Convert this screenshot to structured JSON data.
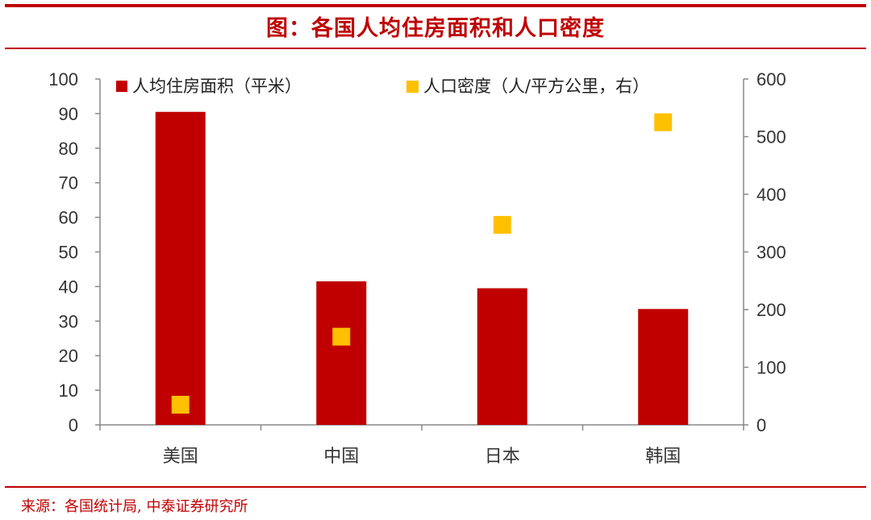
{
  "header": {
    "title": "图：各国人均住房面积和人口密度"
  },
  "footer": {
    "source": "来源：各国统计局, 中泰证券研究所"
  },
  "chart_data": {
    "type": "bar",
    "categories": [
      "美国",
      "中国",
      "日本",
      "韩国"
    ],
    "series": [
      {
        "name": "人均住房面积（平米）",
        "type": "bar",
        "axis": "left",
        "values": [
          90.5,
          41.5,
          39.5,
          33.5
        ],
        "color": "#C00000"
      },
      {
        "name": "人口密度（人/平方公里，右）",
        "type": "scatter",
        "axis": "right",
        "values": [
          35,
          153,
          347,
          525
        ],
        "color": "#FFC000"
      }
    ],
    "y_left": {
      "min": 0,
      "max": 100,
      "ticks": [
        "0",
        "10",
        "20",
        "30",
        "40",
        "50",
        "60",
        "70",
        "80",
        "90",
        "100"
      ]
    },
    "y_right": {
      "min": 0,
      "max": 600,
      "ticks": [
        "0",
        "100",
        "200",
        "300",
        "400",
        "500",
        "600"
      ]
    },
    "legend_position": "top",
    "grid": false
  }
}
